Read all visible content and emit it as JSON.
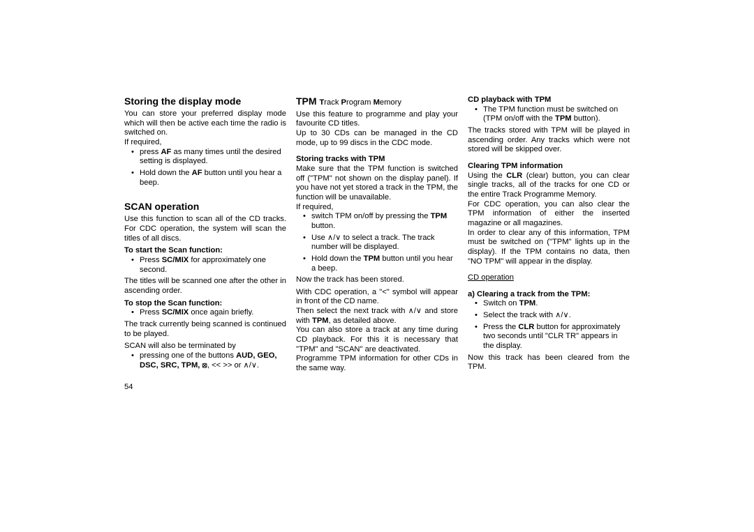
{
  "col1": {
    "h1": "Storing the display mode",
    "p1": "You can store your preferred display mode which will then be active each time the radio is switched on.",
    "p2": "If required,",
    "li1a": "press ",
    "li1b": "AF",
    "li1c": " as many times until the desired setting is displayed.",
    "li2a": "Hold down the ",
    "li2b": "AF",
    "li2c": " button until you hear a beep.",
    "h2": "SCAN operation",
    "p3": "Use this function to scan all of the CD tracks. For CDC operation, the system will scan the titles of all discs.",
    "sub1": "To start the Scan function:",
    "li3a": "Press ",
    "li3b": "SC/MIX",
    "li3c": " for approximately one second.",
    "p4": "The titles will be scanned one after the other in ascending order.",
    "sub2": "To stop the Scan function:",
    "li4a": "Press ",
    "li4b": "SC/MIX",
    "li4c": " once again briefly.",
    "p5": "The track currently being scanned is continued to be played.",
    "p6": "SCAN will also be terminated by",
    "li5a": "pressing one of the buttons ",
    "li5b": "AUD, GEO, DSC, SRC, TPM, ",
    "li5c": ", << >> or "
  },
  "col2": {
    "h1a": "TPM ",
    "h1b": "T",
    "h1c": "rack ",
    "h1d": "P",
    "h1e": "rogram ",
    "h1f": "M",
    "h1g": "emory",
    "p1": "Use this feature to programme and play your favourite CD titles.",
    "p2": "Up to 30 CDs can be managed in the CD mode, up to 99 discs in the CDC mode.",
    "sub1": "Storing tracks with TPM",
    "p3": "Make sure that the TPM function is switched off (\"TPM\" not shown on the display panel). If you have not yet stored a track in the TPM, the function will be unavailable.",
    "p4": "If required,",
    "li1a": "switch TPM on/off by pressing the ",
    "li1b": "TPM",
    "li1c": " button.",
    "li2a": "Use ",
    "li2b": " to select a track. The track number will be displayed.",
    "li3a": "Hold down the ",
    "li3b": "TPM",
    "li3c": " button until you hear a beep.",
    "p5": "Now the track has been stored.",
    "p6a": "With CDC operation, a \"",
    "p6b": "\" symbol will appear in front of the CD name.",
    "p7a": "Then select the next track with ",
    "p7b": " and store with ",
    "p7c": "TPM",
    "p7d": ", as detailed above.",
    "p8": "You can also store a track at any time during CD playback. For this it is necessary that \"TPM\" and \"SCAN\" are deactivated.",
    "p9": "Programme TPM information for other CDs in the same way."
  },
  "col3": {
    "sub1": "CD playback with TPM",
    "li1a": "The TPM function must be switched on (TPM on/off with the ",
    "li1b": "TPM",
    "li1c": " button).",
    "p1": "The tracks stored with TPM will be played in ascending order. Any tracks which were not stored will be skipped over.",
    "sub2": "Clearing TPM information",
    "p2a": "Using the ",
    "p2b": "CLR",
    "p2c": " (clear) button, you can clear single tracks, all of the tracks for one CD or the entire Track Programme Memory.",
    "p3": "For CDC operation, you can also clear the TPM information of either the inserted magazine or all magazines.",
    "p4": "In order to clear any of this information, TPM must be switched on (\"TPM\" lights up in the display). If the TPM contains no data, then \"NO TPM\" will appear in the display.",
    "u1": "CD operation",
    "sub3": "a)  Clearing a track from the TPM:",
    "li2a": "Switch on ",
    "li2b": "TPM",
    "li2c": ".",
    "li3a": "Select the track with ",
    "li3b": ".",
    "li4a": "Press the ",
    "li4b": "CLR",
    "li4c": " button for approximately two seconds until \"CLR  TR\" appears in the display.",
    "p5": "Now this track has been cleared from the TPM."
  },
  "pagenum": "54",
  "glyphs": {
    "updown": "∧/∨",
    "mute": "⦻",
    "lt": "<"
  }
}
